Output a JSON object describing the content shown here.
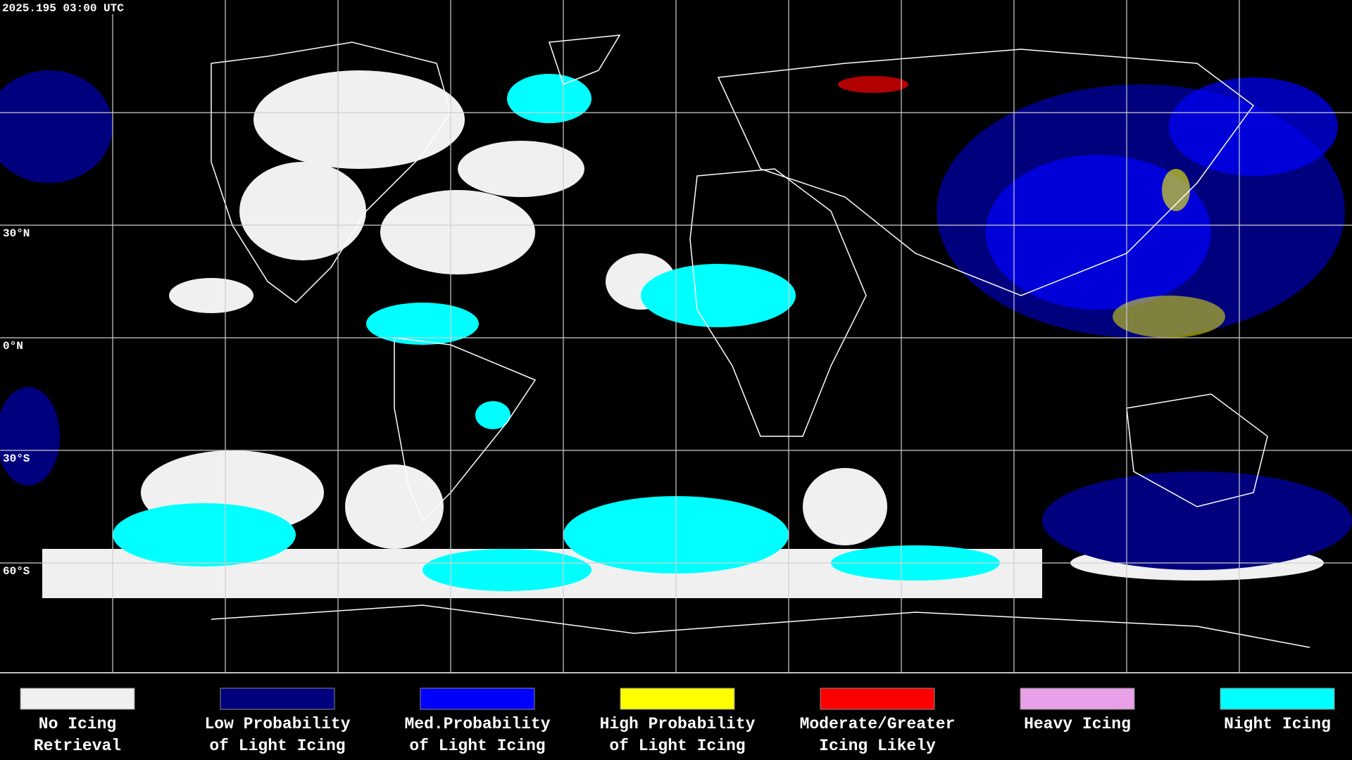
{
  "header": {
    "timestamp": "2025.195 03:00 UTC"
  },
  "latitude_labels": [
    "30°N",
    "0°N",
    "30°S",
    "60°S"
  ],
  "legend": [
    {
      "lines": [
        "No Icing",
        "Retrieval"
      ],
      "color": "#f0f0f0"
    },
    {
      "lines": [
        "Low Probability",
        "of Light Icing"
      ],
      "color": "#00007f"
    },
    {
      "lines": [
        "Med.Probability",
        "of Light Icing"
      ],
      "color": "#0000ff"
    },
    {
      "lines": [
        "High Probability",
        "of Light Icing"
      ],
      "color": "#ffff00"
    },
    {
      "lines": [
        "Moderate/Greater",
        "Icing Likely"
      ],
      "color": "#ff0000"
    },
    {
      "lines": [
        "Heavy Icing"
      ],
      "color": "#e8a0e8"
    },
    {
      "lines": [
        "Night Icing"
      ],
      "color": "#00ffff"
    }
  ]
}
